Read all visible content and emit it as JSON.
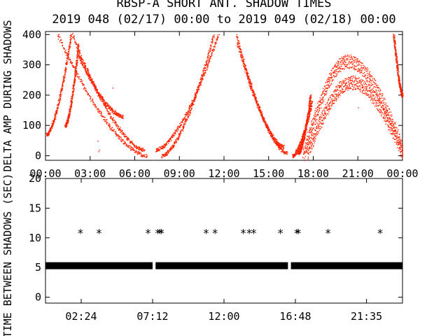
{
  "title": "RBSP-A SHORT ANT. SHADOW TIMES",
  "subtitle": "2019 048 (02/17) 00:00 to 2019 049 (02/18) 00:00",
  "colors": {
    "scatter": "#ff2200",
    "axis": "#000000",
    "background": "#ffffff"
  },
  "chart_data": [
    {
      "type": "scatter",
      "ylabel": "DELTA AMP DURING SHADOWS",
      "xlabel": "",
      "xlim_hours": [
        0,
        24
      ],
      "ylim": [
        -15,
        410
      ],
      "x_tick_labels": [
        "00:00",
        "03:00",
        "06:00",
        "09:00",
        "12:00",
        "15:00",
        "18:00",
        "21:00",
        "00:00"
      ],
      "y_tick_labels": [
        "0",
        "100",
        "200",
        "300",
        "400"
      ],
      "description_series": [
        {
          "shape": "rise",
          "x_start_h": 0.05,
          "x_end_h": 1.7,
          "y_start": 70,
          "y_end": 400
        },
        {
          "shape": "rise",
          "x_start_h": 1.3,
          "x_end_h": 2.2,
          "y_start": 100,
          "y_end": 370
        },
        {
          "shape": "fall",
          "x_start_h": 0.8,
          "x_end_h": 6.8,
          "y_start": 400,
          "y_end": 0
        },
        {
          "shape": "fall",
          "x_start_h": 1.8,
          "x_end_h": 6.6,
          "y_start": 400,
          "y_end": 20
        },
        {
          "shape": "fall",
          "x_start_h": 2.2,
          "x_end_h": 5.2,
          "y_start": 330,
          "y_end": 130
        },
        {
          "shape": "rise",
          "x_start_h": 7.8,
          "x_end_h": 11.3,
          "y_start": 0,
          "y_end": 400
        },
        {
          "shape": "rise",
          "x_start_h": 7.4,
          "x_end_h": 11.6,
          "y_start": 20,
          "y_end": 400
        },
        {
          "shape": "fall",
          "x_start_h": 12.8,
          "x_end_h": 16.2,
          "y_start": 400,
          "y_end": 10
        },
        {
          "shape": "fall",
          "x_start_h": 12.9,
          "x_end_h": 16.0,
          "y_start": 370,
          "y_end": 30
        },
        {
          "shape": "rise",
          "x_start_h": 16.6,
          "x_end_h": 17.9,
          "y_start": 0,
          "y_end": 180
        },
        {
          "shape": "rise",
          "x_start_h": 17.0,
          "x_end_h": 17.8,
          "y_start": 10,
          "y_end": 200
        },
        {
          "shape": "arch",
          "x_start_h": 17.3,
          "x_peak_h": 20.3,
          "x_end_h": 24.0,
          "y_start": 20,
          "y_peak": 330,
          "y_end": 40
        },
        {
          "shape": "arch",
          "x_start_h": 17.6,
          "x_peak_h": 20.6,
          "x_end_h": 24.0,
          "y_start": 30,
          "y_peak": 260,
          "y_end": 30
        },
        {
          "shape": "fall",
          "x_start_h": 23.4,
          "x_end_h": 24.0,
          "y_start": 400,
          "y_end": 200
        }
      ],
      "isolated_points": [
        {
          "x_h": 3.5,
          "y": 50
        },
        {
          "x_h": 3.55,
          "y": 15
        },
        {
          "x_h": 3.6,
          "y": 20
        },
        {
          "x_h": 4.5,
          "y": 225
        },
        {
          "x_h": 21.0,
          "y": 160
        },
        {
          "x_h": 16.8,
          "y": 20
        }
      ]
    },
    {
      "type": "scatter",
      "ylabel": "TIME BETWEEN SHADOWS (SEC)",
      "xlabel": "",
      "xlim_hours": [
        0,
        24
      ],
      "ylim": [
        -1,
        20
      ],
      "x_tick_labels": [
        "02:24",
        "07:12",
        "12:00",
        "16:48",
        "21:35"
      ],
      "y_tick_labels": [
        "0",
        "5",
        "10",
        "15",
        "20"
      ],
      "baseline": {
        "y": 5.3,
        "x_ranges_h": [
          [
            0,
            7.2
          ],
          [
            7.4,
            16.3
          ],
          [
            16.5,
            24
          ]
        ]
      },
      "points_11": [
        2.35,
        3.6,
        6.9,
        7.55,
        7.7,
        7.8,
        10.8,
        11.4,
        13.3,
        13.7,
        14.0,
        15.8,
        16.9,
        17.0,
        19.0,
        22.5
      ]
    }
  ]
}
